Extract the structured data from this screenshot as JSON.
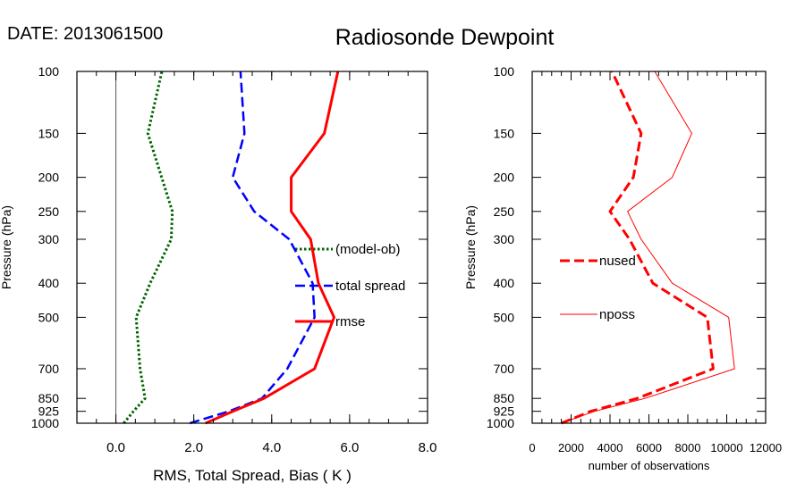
{
  "header": {
    "date_label": "DATE: 2013061500",
    "title": "Radiosonde Dewpoint"
  },
  "chart_data": [
    {
      "type": "line",
      "ylabel": "Pressure (hPa)",
      "xlabel": "RMS, Total Spread, Bias ( K )",
      "y_scale": "log",
      "ylim": [
        1000,
        100
      ],
      "xlim": [
        -1.0,
        8.0
      ],
      "x_ticks": [
        0,
        2,
        4,
        6,
        8
      ],
      "x_tick_labels": [
        "0.0",
        "2.0",
        "4.0",
        "6.0",
        "8.0"
      ],
      "y_ticks": [
        100,
        150,
        200,
        250,
        300,
        400,
        500,
        700,
        850,
        925,
        1000
      ],
      "y_tick_labels": [
        "100",
        "150",
        "200",
        "250",
        "300",
        "400",
        "500",
        "700",
        "850",
        "925",
        "1000"
      ],
      "zero_line": 0,
      "legend": "right-middle",
      "series": [
        {
          "name": "(model-ob)",
          "color": "#006400",
          "style": "dotted",
          "width": 3,
          "points": [
            [
              0.2,
              1000
            ],
            [
              0.45,
              925
            ],
            [
              0.75,
              850
            ],
            [
              0.62,
              700
            ],
            [
              0.52,
              500
            ],
            [
              0.88,
              400
            ],
            [
              1.42,
              300
            ],
            [
              1.45,
              250
            ],
            [
              0.82,
              150
            ],
            [
              1.18,
              100
            ]
          ]
        },
        {
          "name": "total spread",
          "color": "#0000ff",
          "style": "dashed",
          "width": 2.5,
          "points": [
            [
              1.9,
              1000
            ],
            [
              2.9,
              925
            ],
            [
              3.75,
              850
            ],
            [
              4.4,
              700
            ],
            [
              5.1,
              500
            ],
            [
              5.05,
              400
            ],
            [
              4.45,
              300
            ],
            [
              3.55,
              250
            ],
            [
              3.0,
              200
            ],
            [
              3.3,
              150
            ],
            [
              3.2,
              100
            ]
          ]
        },
        {
          "name": "rmse",
          "color": "#ff0000",
          "style": "solid",
          "width": 3,
          "points": [
            [
              2.3,
              1000
            ],
            [
              3.0,
              925
            ],
            [
              3.8,
              850
            ],
            [
              5.1,
              700
            ],
            [
              5.6,
              500
            ],
            [
              5.2,
              400
            ],
            [
              5.0,
              300
            ],
            [
              4.5,
              250
            ],
            [
              4.5,
              200
            ],
            [
              5.35,
              150
            ],
            [
              5.7,
              100
            ]
          ]
        }
      ]
    },
    {
      "type": "line",
      "ylabel": "Pressure (hPa)",
      "xlabel": "number of observations",
      "y_scale": "log",
      "ylim": [
        1000,
        100
      ],
      "xlim": [
        0,
        12000
      ],
      "x_ticks": [
        0,
        2000,
        4000,
        6000,
        8000,
        10000,
        12000
      ],
      "x_tick_labels": [
        "0",
        "2000",
        "4000",
        "6000",
        "8000",
        "10000",
        "12000"
      ],
      "y_ticks": [
        100,
        150,
        200,
        250,
        300,
        400,
        500,
        700,
        850,
        925,
        1000
      ],
      "y_tick_labels": [
        "100",
        "150",
        "200",
        "250",
        "300",
        "400",
        "500",
        "700",
        "850",
        "925",
        "1000"
      ],
      "legend": "left-middle",
      "series": [
        {
          "name": "nused",
          "color": "#ff0000",
          "style": "dashed",
          "width": 3,
          "points": [
            [
              1500,
              1000
            ],
            [
              3000,
              925
            ],
            [
              5400,
              850
            ],
            [
              9300,
              700
            ],
            [
              9000,
              500
            ],
            [
              6200,
              400
            ],
            [
              5000,
              300
            ],
            [
              4000,
              250
            ],
            [
              5200,
              200
            ],
            [
              5600,
              150
            ],
            [
              4100,
              100
            ]
          ]
        },
        {
          "name": "nposs",
          "color": "#ff0000",
          "style": "solid",
          "width": 1,
          "points": [
            [
              1500,
              1000
            ],
            [
              3200,
              925
            ],
            [
              5800,
              850
            ],
            [
              10400,
              700
            ],
            [
              10100,
              500
            ],
            [
              7200,
              400
            ],
            [
              5600,
              300
            ],
            [
              4900,
              250
            ],
            [
              7200,
              200
            ],
            [
              8200,
              150
            ],
            [
              6300,
              100
            ]
          ]
        }
      ]
    }
  ]
}
